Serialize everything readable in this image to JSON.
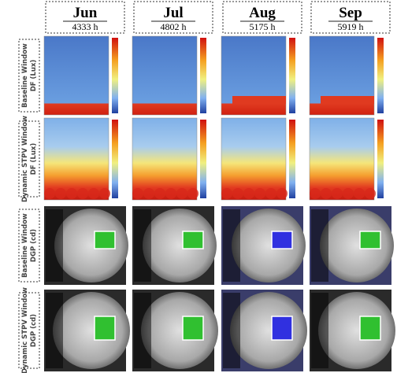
{
  "header": {
    "columns": [
      {
        "month": "Jun",
        "hours": "4333 h"
      },
      {
        "month": "Jul",
        "hours": "4802 h"
      },
      {
        "month": "Aug",
        "hours": "5175 h"
      },
      {
        "month": "Sep",
        "hours": "5919 h"
      }
    ]
  },
  "rows": [
    {
      "title": "Baseline Window",
      "unit": "DF (Lux)"
    },
    {
      "title": "Dynamic STPV Window",
      "unit": "DF (Lux)"
    },
    {
      "title": "Baseline Window",
      "unit": "DGP (cd)"
    },
    {
      "title": "Dynamic STPV Window",
      "unit": "DGP (cd)"
    }
  ]
}
